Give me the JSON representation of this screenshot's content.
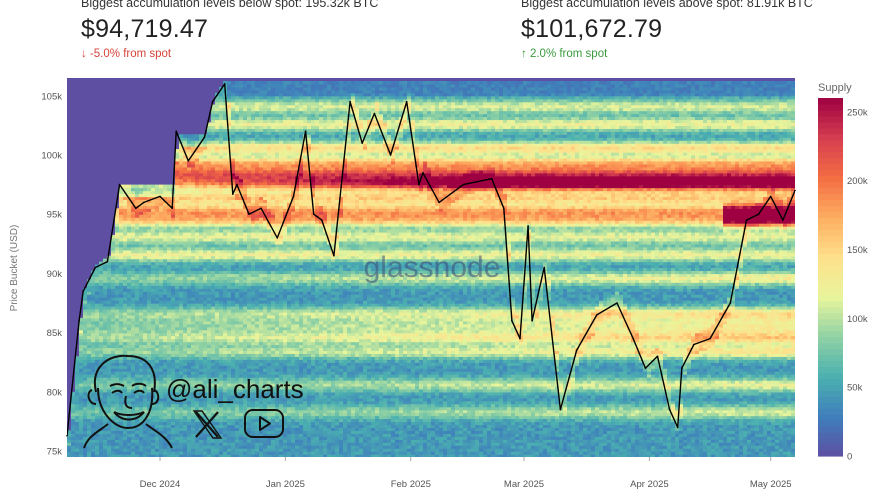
{
  "stats": {
    "below": {
      "label": "Biggest accumulation levels below spot: 195.32k BTC",
      "value": "$94,719.47",
      "change": "-5.0% from spot",
      "change_color": "#d6433a"
    },
    "above": {
      "label": "Biggest accumulation levels above spot: 81.91k BTC",
      "value": "$101,672.79",
      "change": "2.0% from spot",
      "change_color": "#3a9a3e"
    }
  },
  "watermark": "glassnode",
  "author": {
    "handle": "@ali_charts",
    "icons": [
      "x-logo-icon",
      "youtube-icon"
    ]
  },
  "chart_data": {
    "type": "heatmap",
    "ylabel": "Price Bucket (USD)",
    "yticks": [
      75000,
      80000,
      85000,
      90000,
      95000,
      100000,
      105000
    ],
    "yticklabels": [
      "75k",
      "80k",
      "85k",
      "90k",
      "95k",
      "100k",
      "105k"
    ],
    "ylim": [
      74500,
      106500
    ],
    "xlim": [
      "2024-11-08",
      "2025-05-07"
    ],
    "xticks": [
      "2024-12-01",
      "2025-01-01",
      "2025-02-01",
      "2025-03-01",
      "2025-04-01",
      "2025-05-01"
    ],
    "xticklabels": [
      "Dec 2024",
      "Jan 2025",
      "Feb 2025",
      "Mar 2025",
      "Apr 2025",
      "May 2025"
    ],
    "colorbar": {
      "title": "Supply",
      "range": [
        0,
        260000
      ],
      "ticks": [
        0,
        50000,
        100000,
        150000,
        200000,
        250000
      ],
      "ticklabels": [
        "0",
        "50k",
        "100k",
        "150k",
        "200k",
        "250k"
      ],
      "colors": [
        "#5e4fa2",
        "#3f7fbc",
        "#4bb0b0",
        "#8fd1a4",
        "#e8f59c",
        "#fee08b",
        "#fdae61",
        "#f46d43",
        "#d53e4f",
        "#9e0142"
      ]
    },
    "price_series": {
      "name": "Price",
      "x": [
        "2024-11-08",
        "2024-11-11",
        "2024-11-12",
        "2024-11-15",
        "2024-11-18",
        "2024-11-21",
        "2024-11-25",
        "2024-11-27",
        "2024-12-01",
        "2024-12-04",
        "2024-12-05",
        "2024-12-08",
        "2024-12-12",
        "2024-12-14",
        "2024-12-17",
        "2024-12-19",
        "2024-12-20",
        "2024-12-23",
        "2024-12-26",
        "2024-12-30",
        "2025-01-03",
        "2025-01-06",
        "2025-01-08",
        "2025-01-10",
        "2025-01-13",
        "2025-01-17",
        "2025-01-20",
        "2025-01-23",
        "2025-01-27",
        "2025-01-31",
        "2025-02-03",
        "2025-02-04",
        "2025-02-08",
        "2025-02-14",
        "2025-02-21",
        "2025-02-24",
        "2025-02-26",
        "2025-02-28",
        "2025-03-02",
        "2025-03-03",
        "2025-03-06",
        "2025-03-10",
        "2025-03-14",
        "2025-03-19",
        "2025-03-24",
        "2025-03-28",
        "2025-03-31",
        "2025-04-03",
        "2025-04-06",
        "2025-04-08",
        "2025-04-09",
        "2025-04-12",
        "2025-04-16",
        "2025-04-21",
        "2025-04-25",
        "2025-04-28",
        "2025-05-01",
        "2025-05-04",
        "2025-05-07"
      ],
      "y": [
        76300,
        86000,
        88500,
        90500,
        91000,
        97500,
        95500,
        96000,
        96500,
        95500,
        102000,
        99500,
        101500,
        104500,
        106000,
        96700,
        97500,
        95000,
        95500,
        93000,
        96500,
        102000,
        95000,
        94500,
        91500,
        104500,
        101000,
        103500,
        100000,
        104500,
        97500,
        98500,
        96000,
        97500,
        98000,
        95500,
        86000,
        84500,
        94000,
        86000,
        90500,
        78500,
        83500,
        86500,
        87500,
        84500,
        82000,
        83000,
        78500,
        77000,
        82000,
        84000,
        84500,
        87500,
        94500,
        95000,
        96500,
        94500,
        97000
      ]
    }
  }
}
